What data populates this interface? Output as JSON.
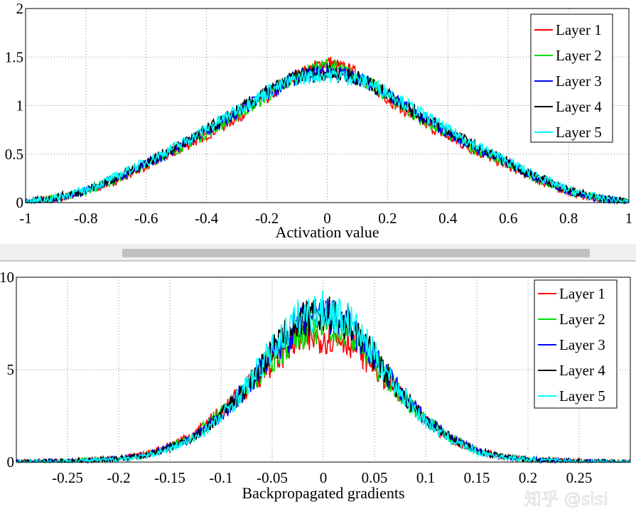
{
  "chart_data": [
    {
      "type": "line",
      "xlabel": "Activation value",
      "ylabel": "",
      "xlim": [
        -1,
        1
      ],
      "ylim": [
        0,
        2
      ],
      "xticks": [
        "-1",
        "-0.8",
        "-0.6",
        "-0.4",
        "-0.2",
        "0",
        "0.2",
        "0.4",
        "0.6",
        "0.8",
        "1"
      ],
      "yticks": [
        "0",
        "0.5",
        "1",
        "1.5",
        "2"
      ],
      "grid": true,
      "legend": "top-right",
      "x": [
        -1,
        -0.9,
        -0.8,
        -0.7,
        -0.6,
        -0.5,
        -0.4,
        -0.3,
        -0.2,
        -0.1,
        0,
        0.1,
        0.2,
        0.3,
        0.4,
        0.5,
        0.6,
        0.7,
        0.8,
        0.9,
        1
      ],
      "series": [
        {
          "name": "Layer 1",
          "color": "#ff0000",
          "values": [
            0,
            0.04,
            0.11,
            0.23,
            0.38,
            0.53,
            0.7,
            0.88,
            1.08,
            1.3,
            1.45,
            1.32,
            1.08,
            0.86,
            0.68,
            0.52,
            0.38,
            0.23,
            0.11,
            0.04,
            0
          ]
        },
        {
          "name": "Layer 2",
          "color": "#00dd00",
          "values": [
            0,
            0.04,
            0.12,
            0.24,
            0.39,
            0.55,
            0.72,
            0.9,
            1.1,
            1.3,
            1.42,
            1.3,
            1.1,
            0.88,
            0.7,
            0.54,
            0.39,
            0.24,
            0.12,
            0.04,
            0
          ]
        },
        {
          "name": "Layer 3",
          "color": "#0000ff",
          "values": [
            0,
            0.04,
            0.12,
            0.25,
            0.4,
            0.56,
            0.73,
            0.92,
            1.12,
            1.29,
            1.36,
            1.29,
            1.12,
            0.9,
            0.72,
            0.55,
            0.4,
            0.25,
            0.12,
            0.04,
            0
          ]
        },
        {
          "name": "Layer 4",
          "color": "#000000",
          "values": [
            0,
            0.05,
            0.13,
            0.26,
            0.41,
            0.57,
            0.75,
            0.94,
            1.14,
            1.3,
            1.34,
            1.29,
            1.12,
            0.92,
            0.74,
            0.57,
            0.41,
            0.26,
            0.13,
            0.05,
            0
          ]
        },
        {
          "name": "Layer 5",
          "color": "#00ffff",
          "values": [
            0,
            0.05,
            0.13,
            0.27,
            0.42,
            0.58,
            0.76,
            0.95,
            1.14,
            1.28,
            1.32,
            1.28,
            1.14,
            0.94,
            0.75,
            0.58,
            0.42,
            0.27,
            0.13,
            0.05,
            0
          ]
        }
      ]
    },
    {
      "type": "line",
      "xlabel": "Backpropagated gradients",
      "ylabel": "",
      "xlim": [
        -0.3,
        0.3
      ],
      "ylim": [
        0,
        10
      ],
      "xticks": [
        "-0.25",
        "-0.2",
        "-0.15",
        "-0.1",
        "-0.05",
        "0",
        "0.05",
        "0.1",
        "0.15",
        "0.2",
        "0.25"
      ],
      "yticks": [
        "0",
        "5",
        "10"
      ],
      "grid": true,
      "legend": "top-right",
      "x": [
        -0.3,
        -0.25,
        -0.2,
        -0.175,
        -0.15,
        -0.125,
        -0.1,
        -0.075,
        -0.05,
        -0.025,
        0,
        0.025,
        0.05,
        0.075,
        0.1,
        0.125,
        0.15,
        0.175,
        0.2,
        0.25,
        0.3
      ],
      "series": [
        {
          "name": "Layer 1",
          "color": "#ff0000",
          "values": [
            0,
            0.05,
            0.2,
            0.4,
            0.9,
            1.6,
            2.7,
            4,
            5.4,
            6.6,
            6.8,
            6.6,
            5.2,
            3.6,
            2.2,
            1.2,
            0.6,
            0.3,
            0.15,
            0.04,
            0
          ]
        },
        {
          "name": "Layer 2",
          "color": "#00dd00",
          "values": [
            0,
            0.05,
            0.18,
            0.35,
            0.8,
            1.5,
            2.6,
            4,
            5.6,
            7,
            7.4,
            7,
            5.4,
            3.7,
            2.3,
            1.3,
            0.6,
            0.3,
            0.15,
            0.04,
            0
          ]
        },
        {
          "name": "Layer 3",
          "color": "#0000ff",
          "values": [
            0,
            0.05,
            0.18,
            0.35,
            0.8,
            1.4,
            2.5,
            4,
            5.8,
            7.4,
            8,
            7.4,
            5.6,
            3.8,
            2.3,
            1.3,
            0.6,
            0.3,
            0.15,
            0.04,
            0
          ]
        },
        {
          "name": "Layer 4",
          "color": "#000000",
          "values": [
            0,
            0.05,
            0.18,
            0.35,
            0.75,
            1.4,
            2.5,
            4.1,
            6,
            7.6,
            8,
            7.6,
            5.7,
            3.8,
            2.3,
            1.3,
            0.6,
            0.3,
            0.15,
            0.04,
            0
          ]
        },
        {
          "name": "Layer 5",
          "color": "#00ffff",
          "values": [
            0,
            0.04,
            0.15,
            0.3,
            0.7,
            1.3,
            2.4,
            4.1,
            6.1,
            7.8,
            8.2,
            7.7,
            5.8,
            3.8,
            2.2,
            1.2,
            0.55,
            0.28,
            0.12,
            0.03,
            0
          ]
        }
      ]
    }
  ],
  "watermark": "知乎 @sisi"
}
